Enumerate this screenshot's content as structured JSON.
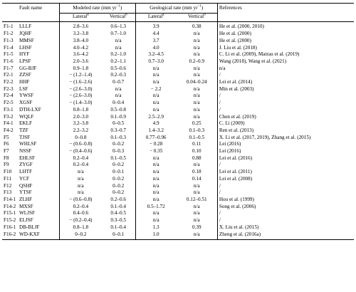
{
  "header": {
    "fault_name": "Fault name",
    "modeled_rate": "Modeled rate (mm yr",
    "geological_rate": "Geological rate (mm yr",
    "unit_exp": "−1",
    "close_paren": ")",
    "references": "References",
    "lateral": "Lateral",
    "vertical": "Vertical",
    "sup_a": "a",
    "sup_b": "b"
  },
  "rows": [
    {
      "id": "F1-1",
      "name": "LLLF",
      "m_lat": "2.8–3.6",
      "m_ver": "0.6–1.3",
      "g_lat": "3.9",
      "g_ver": "0.38",
      "ref": "He et al. (2000, 2010)"
    },
    {
      "id": "F1-2",
      "name": "JQHF",
      "m_lat": "3.2–3.8",
      "m_ver": "0.7–1.0",
      "g_lat": "4.4",
      "g_ver": "n/a",
      "ref": "He et al. (2000)"
    },
    {
      "id": "F1-3",
      "name": "MMSF",
      "m_lat": "3.8–4.0",
      "m_ver": "n/a",
      "g_lat": "3.7",
      "g_ver": "n/a",
      "ref": "He et al. (2000)"
    },
    {
      "id": "F1-4",
      "name": "LHSF",
      "m_lat": "4.0–4.2",
      "m_ver": "n/a",
      "g_lat": "4.0",
      "g_ver": "n/a",
      "ref": "J. Liu et al. (2018)"
    },
    {
      "id": "F1-5",
      "name": "HYF",
      "m_lat": "3.6–4.2",
      "m_ver": "0.2–1.0",
      "g_lat": "3.2–4.5",
      "g_ver": "n/a",
      "ref": "C. Li et al. (2009), Matrau et al. (2019)"
    },
    {
      "id": "F1-6",
      "name": "LPSF",
      "m_lat": "2.0–3.6",
      "m_ver": "0.2–1.1",
      "g_lat": "0.7–3.0",
      "g_ver": "0.2–0.9",
      "ref": "Wang (2018), Wang et al. (2021)"
    },
    {
      "id": "F1-7",
      "name": "GG-BJF",
      "m_lat": "0.9–1.8",
      "m_ver": "0.5–0.6",
      "g_lat": "n/a",
      "g_ver": "n/a",
      "ref": "n/a"
    },
    {
      "id": "F2-1",
      "name": "ZZSF",
      "m_lat": "− (1.2–1.4)",
      "m_ver": "0.2–0.3",
      "g_lat": "n/a",
      "g_ver": "n/a",
      "ref": "/"
    },
    {
      "id": "F2-2",
      "name": "HHF",
      "m_lat": "− (1.6–2.6)",
      "m_ver": "0–0.7",
      "g_lat": "n/a",
      "g_ver": "0.04–0.24",
      "ref": "Lei et al. (2014)"
    },
    {
      "id": "F2-3",
      "name": "LSF",
      "m_lat": "− (2.6–3.0)",
      "m_ver": "n/a",
      "g_lat": "− 2.2",
      "g_ver": "n/a",
      "ref": "Min et al. (2003)"
    },
    {
      "id": "F2-4",
      "name": "YWSF",
      "m_lat": "− (2.6–3.0)",
      "m_ver": "n/a",
      "g_lat": "n/a",
      "g_ver": "n/a",
      "ref": "/"
    },
    {
      "id": "F2-5",
      "name": "XGSF",
      "m_lat": "− (1.4–3.0)",
      "m_ver": "0–0.4",
      "g_lat": "n/a",
      "g_ver": "n/a",
      "ref": "/"
    },
    {
      "id": "F3-1",
      "name": "DTH-LXF",
      "m_lat": "0.8–1.8",
      "m_ver": "0.5–0.8",
      "g_lat": "n/a",
      "g_ver": "n/a",
      "ref": "/"
    },
    {
      "id": "F3-2",
      "name": "WQLF",
      "m_lat": "2.0–3.0",
      "m_ver": "0.1–0.9",
      "g_lat": "2.5–2.9",
      "g_ver": "n/a",
      "ref": "Chen et al. (2019)"
    },
    {
      "id": "F4-1",
      "name": "EKLF",
      "m_lat": "3.2–3.8",
      "m_ver": "0–0.5",
      "g_lat": "4.9",
      "g_ver": "0.25",
      "ref": "C. Li (2009)"
    },
    {
      "id": "F4-2",
      "name": "TZF",
      "m_lat": "2.2–3.2",
      "m_ver": "0.3–0.7",
      "g_lat": "1.4–3.2",
      "g_ver": "0.1–0.3",
      "ref": "Ren et al. (2013)"
    },
    {
      "id": "F5",
      "name": "TJSF",
      "m_lat": "0–0.8",
      "m_ver": "0.1–0.3",
      "g_lat": "0.77–0.96",
      "g_ver": "0.1–0.5",
      "ref": "X. Li et al. (2017, 2019), Zhang et al. (2015)"
    },
    {
      "id": "F6",
      "name": "WHLSF",
      "m_lat": "− (0.6–0.8)",
      "m_ver": "0–0.2",
      "g_lat": "− 0.28",
      "g_ver": "0.11",
      "ref": "Lei (2016)"
    },
    {
      "id": "F7",
      "name": "NSSF",
      "m_lat": "− (0.4–0.6)",
      "m_ver": "0–0.3",
      "g_lat": "− 0.35",
      "g_ver": "0.10",
      "ref": "Lei (2016)"
    },
    {
      "id": "F8",
      "name": "EHLSF",
      "m_lat": "0.2–0.4",
      "m_ver": "0.1–0.5",
      "g_lat": "n/a",
      "g_ver": "0.88",
      "ref": "Lei et al. (2016)"
    },
    {
      "id": "F9",
      "name": "ZYGF",
      "m_lat": "0.2–0.4",
      "m_ver": "0–0.2",
      "g_lat": "n/a",
      "g_ver": "n/a",
      "ref": "/"
    },
    {
      "id": "F10",
      "name": "LHTF",
      "m_lat": "n/a",
      "m_ver": "0–0.1",
      "g_lat": "n/a",
      "g_ver": "0.18",
      "ref": "Lei et al. (2011)"
    },
    {
      "id": "F11",
      "name": "YCF",
      "m_lat": "n/a",
      "m_ver": "0–0.2",
      "g_lat": "n/a",
      "g_ver": "0.14",
      "ref": "Lei et al. (2008)"
    },
    {
      "id": "F12",
      "name": "QSHF",
      "m_lat": "n/a",
      "m_ver": "0–0.2",
      "g_lat": "n/a",
      "g_ver": "n/a",
      "ref": "/"
    },
    {
      "id": "F13",
      "name": "YTSF",
      "m_lat": "n/a",
      "m_ver": "0–0.2",
      "g_lat": "n/a",
      "g_ver": "n/a",
      "ref": "/"
    },
    {
      "id": "F14-1",
      "name": "ZLHF",
      "m_lat": "− (0.6–0.8)",
      "m_ver": "0.2–0.6",
      "g_lat": "n/a",
      "g_ver": "0.12–0.51",
      "ref": "Hou et al. (1999)"
    },
    {
      "id": "F14-2",
      "name": "MXSF",
      "m_lat": "0.2–0.4",
      "m_ver": "0.1–0.4",
      "g_lat": "0.5–1.72",
      "g_ver": "n/a",
      "ref": "Song et al. (2006)"
    },
    {
      "id": "F15-1",
      "name": "WLJSF",
      "m_lat": "0.4–0.6",
      "m_ver": "0.4–0.5",
      "g_lat": "n/a",
      "g_ver": "n/a",
      "ref": "/"
    },
    {
      "id": "F15-2",
      "name": "ELJSF",
      "m_lat": "− (0.2–0.4)",
      "m_ver": "0.3–0.5",
      "g_lat": "n/a",
      "g_ver": "n/a",
      "ref": "/"
    },
    {
      "id": "F16-1",
      "name": "DB-BLJF",
      "m_lat": "0.8–1.8",
      "m_ver": "0.1–0.4",
      "g_lat": "1.3",
      "g_ver": "0.39",
      "ref": "X. Liu et al. (2015)"
    },
    {
      "id": "F16-2",
      "name": "WD-KXF",
      "m_lat": "0–0.2",
      "m_ver": "0–0.1",
      "g_lat": "1.0",
      "g_ver": "n/a",
      "ref": "Zheng et al. (2016a)"
    }
  ]
}
